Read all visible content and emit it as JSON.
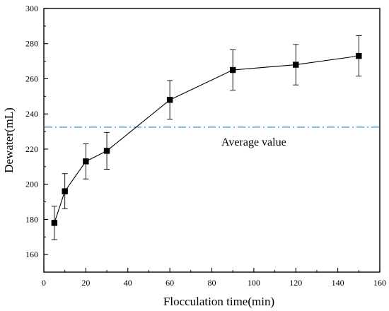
{
  "chart_data": {
    "type": "line",
    "title": "",
    "xlabel": "Flocculation time(min)",
    "ylabel": "Dewater(mL)",
    "xlim": [
      0,
      160
    ],
    "ylim": [
      150,
      300
    ],
    "x_ticks": [
      0,
      20,
      40,
      60,
      80,
      100,
      120,
      140,
      160
    ],
    "y_ticks": [
      160,
      180,
      200,
      220,
      240,
      260,
      280,
      300
    ],
    "grid": false,
    "series": [
      {
        "x": [
          5,
          10,
          20,
          30,
          60,
          90,
          120,
          150
        ],
        "y": [
          178,
          196,
          213,
          219,
          248,
          265,
          268,
          273
        ],
        "error": [
          9.5,
          10,
          10,
          10.5,
          11,
          11.5,
          11.5,
          11.5
        ],
        "marker": "square",
        "color": "#000000"
      }
    ],
    "reference_line": {
      "y": 232.5,
      "label": "Average value",
      "label_x": 100,
      "label_y": 224,
      "style": "dash-dot",
      "color": "#2f97c8"
    }
  }
}
